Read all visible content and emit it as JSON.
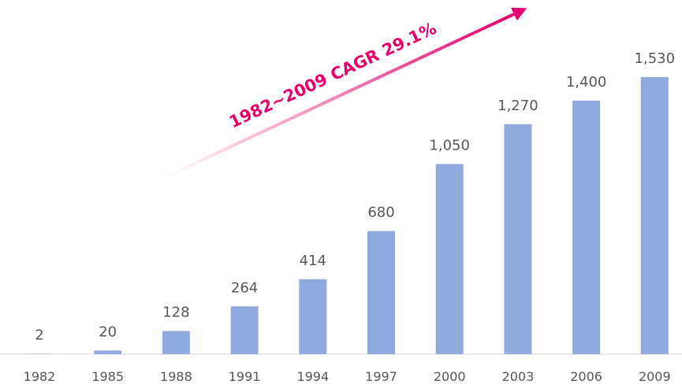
{
  "chart_data": {
    "type": "bar",
    "annotation": "1982~2009 CAGR 29.1%",
    "categories": [
      "1982",
      "1985",
      "1988",
      "1991",
      "1994",
      "1997",
      "2000",
      "2003",
      "2006",
      "2009"
    ],
    "values": [
      2,
      20,
      128,
      264,
      414,
      680,
      1050,
      1270,
      1400,
      1530
    ],
    "value_labels": [
      "2",
      "20",
      "128",
      "264",
      "414",
      "680",
      "1,050",
      "1,270",
      "1,400",
      "1,530"
    ],
    "color": "#8faadc"
  }
}
